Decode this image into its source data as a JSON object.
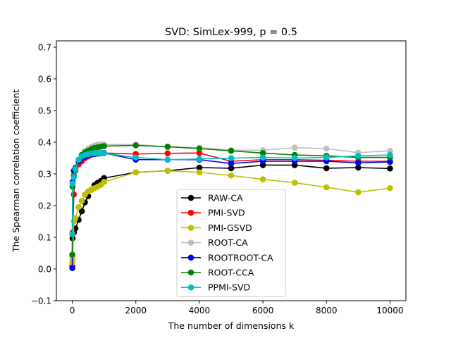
{
  "chart_data": {
    "type": "line",
    "title": "SVD: SimLex-999, p = 0.5",
    "xlabel": "The number of dimensions k",
    "ylabel": "The Spearman correlation coefficient",
    "xlim": [
      -500,
      10500
    ],
    "ylim": [
      -0.1,
      0.72
    ],
    "xticks": [
      0,
      2000,
      4000,
      6000,
      8000,
      10000
    ],
    "yticks": [
      -0.1,
      0.0,
      0.1,
      0.2,
      0.3,
      0.4,
      0.5,
      0.6,
      0.7
    ],
    "grid": false,
    "legend_position": "lower-center",
    "series": [
      {
        "name": "RAW-CA",
        "color": "#000000",
        "x": [
          1,
          10,
          50,
          100,
          200,
          300,
          400,
          500,
          600,
          700,
          800,
          900,
          1000,
          2000,
          3000,
          4000,
          5000,
          6000,
          7000,
          8000,
          9000,
          10000
        ],
        "y": [
          0.045,
          0.097,
          0.115,
          0.128,
          0.155,
          0.182,
          0.21,
          0.23,
          0.25,
          0.265,
          0.272,
          0.278,
          0.287,
          0.305,
          0.31,
          0.32,
          0.318,
          0.328,
          0.328,
          0.318,
          0.32,
          0.317
        ]
      },
      {
        "name": "PMI-SVD",
        "color": "#ff0000",
        "x": [
          1,
          10,
          50,
          100,
          200,
          300,
          400,
          500,
          600,
          700,
          800,
          900,
          1000,
          2000,
          3000,
          4000,
          5000,
          6000,
          7000,
          8000,
          9000,
          10000
        ],
        "y": [
          0.01,
          0.115,
          0.235,
          0.31,
          0.33,
          0.34,
          0.35,
          0.355,
          0.36,
          0.365,
          0.365,
          0.366,
          0.366,
          0.363,
          0.365,
          0.366,
          0.34,
          0.345,
          0.345,
          0.343,
          0.34,
          0.34
        ]
      },
      {
        "name": "PMI-GSVD",
        "color": "#bfbf00",
        "x": [
          1,
          10,
          50,
          100,
          200,
          300,
          400,
          500,
          600,
          700,
          800,
          900,
          1000,
          2000,
          3000,
          4000,
          5000,
          6000,
          7000,
          8000,
          9000,
          10000
        ],
        "y": [
          0.02,
          0.03,
          0.15,
          0.16,
          0.195,
          0.215,
          0.235,
          0.245,
          0.25,
          0.255,
          0.26,
          0.265,
          0.275,
          0.305,
          0.31,
          0.305,
          0.295,
          0.283,
          0.272,
          0.258,
          0.242,
          0.255
        ]
      },
      {
        "name": "ROOT-CA",
        "color": "#bfbfbf",
        "x": [
          1,
          10,
          50,
          100,
          200,
          300,
          400,
          500,
          600,
          700,
          800,
          900,
          1000,
          2000,
          3000,
          4000,
          5000,
          6000,
          7000,
          8000,
          9000,
          10000
        ],
        "y": [
          0.04,
          0.27,
          0.3,
          0.32,
          0.345,
          0.36,
          0.372,
          0.38,
          0.385,
          0.39,
          0.392,
          0.393,
          0.393,
          0.393,
          0.385,
          0.383,
          0.375,
          0.375,
          0.383,
          0.38,
          0.367,
          0.373
        ]
      },
      {
        "name": "ROOTROOT-CA",
        "color": "#0000ff",
        "x": [
          1,
          10,
          50,
          100,
          200,
          300,
          400,
          500,
          600,
          700,
          800,
          900,
          1000,
          2000,
          3000,
          4000,
          5000,
          6000,
          7000,
          8000,
          9000,
          10000
        ],
        "y": [
          0.003,
          0.275,
          0.31,
          0.315,
          0.34,
          0.35,
          0.355,
          0.36,
          0.362,
          0.363,
          0.364,
          0.365,
          0.366,
          0.345,
          0.345,
          0.345,
          0.333,
          0.34,
          0.34,
          0.34,
          0.335,
          0.338
        ]
      },
      {
        "name": "ROOT-CCA",
        "color": "#008000",
        "x": [
          1,
          10,
          50,
          100,
          200,
          300,
          400,
          500,
          600,
          700,
          800,
          900,
          1000,
          2000,
          3000,
          4000,
          5000,
          6000,
          7000,
          8000,
          9000,
          10000
        ],
        "y": [
          0.045,
          0.26,
          0.295,
          0.32,
          0.345,
          0.36,
          0.368,
          0.373,
          0.378,
          0.382,
          0.384,
          0.386,
          0.388,
          0.39,
          0.386,
          0.38,
          0.373,
          0.366,
          0.36,
          0.357,
          0.352,
          0.352
        ]
      },
      {
        "name": "PPMI-SVD",
        "color": "#00bfbf",
        "x": [
          1,
          10,
          50,
          100,
          200,
          300,
          400,
          500,
          600,
          700,
          800,
          900,
          1000,
          2000,
          3000,
          4000,
          5000,
          6000,
          7000,
          8000,
          9000,
          10000
        ],
        "y": [
          0.11,
          0.27,
          0.29,
          0.315,
          0.345,
          0.355,
          0.36,
          0.362,
          0.365,
          0.366,
          0.366,
          0.366,
          0.365,
          0.352,
          0.345,
          0.347,
          0.35,
          0.352,
          0.35,
          0.352,
          0.357,
          0.36
        ]
      }
    ]
  }
}
